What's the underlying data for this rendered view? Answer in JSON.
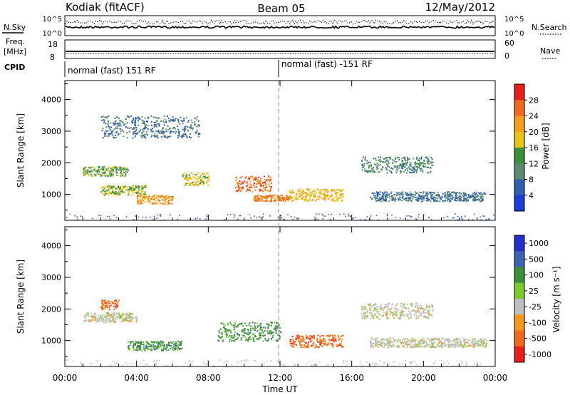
{
  "header": {
    "station": "Kodiak (fitACF)",
    "beam": "Beam 05",
    "date": "12/May/2012"
  },
  "panels_top": {
    "nsky_label": "N.Sky",
    "nsky_ticks": [
      "10^5",
      "10^0"
    ],
    "nsearch_label": "N.Search",
    "nsearch_ticks": [
      "10^5",
      "10^0"
    ],
    "freq_label_1": "Freq.",
    "freq_label_2": "[MHz]",
    "freq_ticks": [
      "18",
      "8"
    ],
    "nave_label": "Nave",
    "nave_ticks": [
      "60",
      "0"
    ],
    "cpid_label": "CPID",
    "cpid_segments": [
      {
        "label": "normal (fast) 151 RF",
        "start_hour": 0
      },
      {
        "label": "normal (fast) -151 RF",
        "start_hour": 12
      }
    ]
  },
  "power_panel": {
    "ylabel": "Slant Range [km]",
    "cbar_label": "Power [dB]",
    "cbar_ticks": [
      "28",
      "24",
      "20",
      "16",
      "12",
      "8",
      "4"
    ],
    "cbar_colors": [
      "#e8201c",
      "#f06a1e",
      "#f4a01c",
      "#e9c41a",
      "#3a8f3a",
      "#5c8c6e",
      "#2e5fb0",
      "#1b3cd6"
    ]
  },
  "velocity_panel": {
    "ylabel": "Slant Range [km]",
    "cbar_label": "Velocity [m s⁻¹]",
    "cbar_ticks": [
      "1000",
      "500",
      "100",
      "25",
      "-25",
      "-100",
      "-500",
      "-1000"
    ],
    "cbar_colors": [
      "#2430c8",
      "#3c62b0",
      "#3a8f3a",
      "#7ccb2e",
      "#bfbfbf",
      "#f39a1c",
      "#f06a1e",
      "#e8201c"
    ]
  },
  "xaxis": {
    "label": "Time UT",
    "ticks": [
      "00:00",
      "04:00",
      "08:00",
      "12:00",
      "16:00",
      "20:00",
      "00:00"
    ]
  },
  "chart_data": {
    "type": "heatmap",
    "x_range_hours": [
      0,
      24
    ],
    "y_range_km": [
      180,
      4600
    ],
    "yticks": [
      "1000",
      "2000",
      "3000",
      "4000"
    ],
    "power_bands_dB": [
      {
        "t": [
          1.0,
          3.5
        ],
        "range_km": [
          1600,
          1900
        ],
        "power": 12
      },
      {
        "t": [
          2.0,
          4.5
        ],
        "range_km": [
          1000,
          1300
        ],
        "power": 14
      },
      {
        "t": [
          4.0,
          6.0
        ],
        "range_km": [
          700,
          1000
        ],
        "power": 20
      },
      {
        "t": [
          6.5,
          8.0
        ],
        "range_km": [
          1300,
          1700
        ],
        "power": 16
      },
      {
        "t": [
          9.5,
          11.5
        ],
        "range_km": [
          1100,
          1600
        ],
        "power": 24
      },
      {
        "t": [
          10.5,
          12.5
        ],
        "range_km": [
          800,
          1000
        ],
        "power": 22
      },
      {
        "t": [
          12.5,
          15.5
        ],
        "range_km": [
          800,
          1200
        ],
        "power": 18
      },
      {
        "t": [
          16.5,
          20.5
        ],
        "range_km": [
          1700,
          2200
        ],
        "power": 8
      },
      {
        "t": [
          17.0,
          23.5
        ],
        "range_km": [
          800,
          1100
        ],
        "power": 6
      },
      {
        "t": [
          2.0,
          7.5
        ],
        "range_km": [
          2800,
          3500
        ],
        "power": 6
      }
    ],
    "velocity_bands": [
      {
        "t": [
          1.0,
          4.0
        ],
        "range_km": [
          1600,
          1900
        ],
        "velocity": 0
      },
      {
        "t": [
          2.0,
          3.0
        ],
        "range_km": [
          2000,
          2300
        ],
        "velocity": -100
      },
      {
        "t": [
          3.5,
          6.5
        ],
        "range_km": [
          700,
          1000
        ],
        "velocity": 100
      },
      {
        "t": [
          8.5,
          12.0
        ],
        "range_km": [
          1000,
          1600
        ],
        "velocity": 100
      },
      {
        "t": [
          12.5,
          15.5
        ],
        "range_km": [
          800,
          1200
        ],
        "velocity": -100
      },
      {
        "t": [
          16.5,
          20.5
        ],
        "range_km": [
          1700,
          2200
        ],
        "velocity": 0
      },
      {
        "t": [
          17.0,
          23.5
        ],
        "range_km": [
          800,
          1100
        ],
        "velocity": 0
      }
    ]
  }
}
